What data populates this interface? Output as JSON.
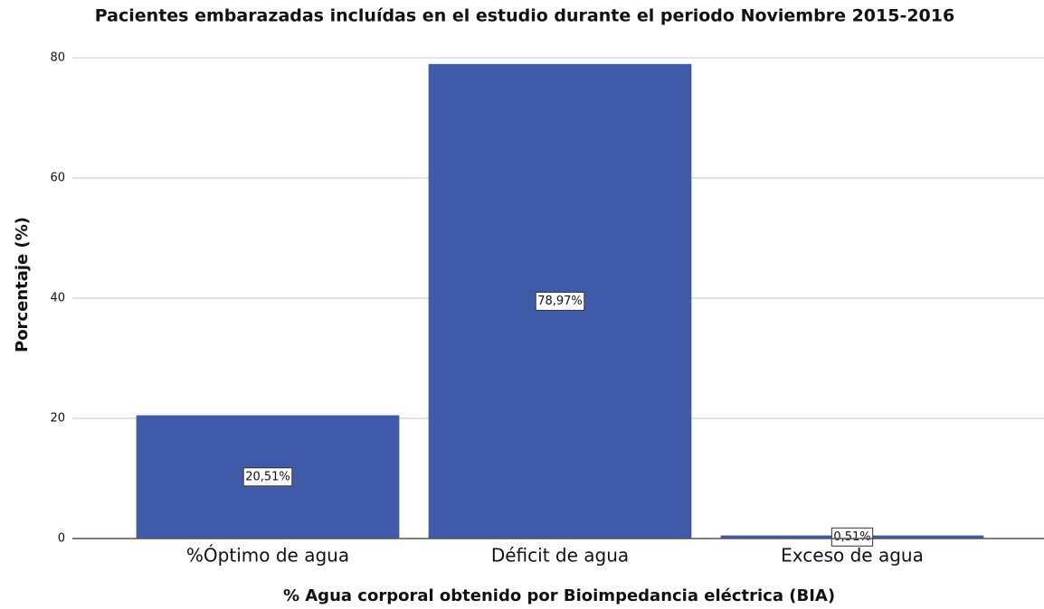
{
  "chart_data": {
    "type": "bar",
    "title": "Pacientes embarazadas incluídas en el estudio durante el periodo Noviembre 2015-2016",
    "x_label": "% Agua corporal obtenido por Bioimpedancia eléctrica (BIA)",
    "y_label": "Porcentaje (%)",
    "categories": [
      "%Óptimo de agua",
      "Déficit de agua",
      "Exceso de agua"
    ],
    "values": [
      20.51,
      78.97,
      0.51
    ],
    "value_labels": [
      "20,51%",
      "78,97%",
      "0,51%"
    ],
    "color": "#3f5aa8",
    "ylim": [
      0,
      84
    ],
    "yticks": [
      0,
      20,
      40,
      60,
      80
    ],
    "grid": true
  }
}
